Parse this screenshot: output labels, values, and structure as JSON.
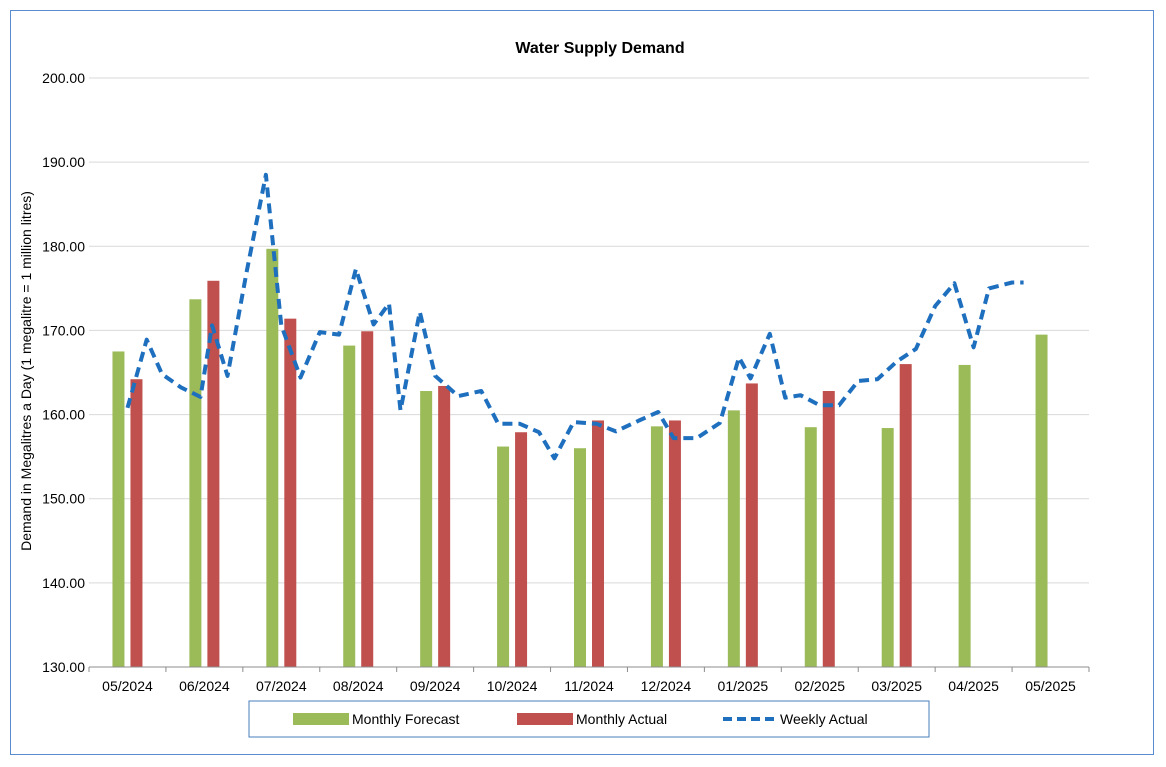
{
  "chart_data": {
    "type": "bar",
    "title": "Water Supply Demand",
    "ylabel": "Demand in Megalitres a Day (1 megalitre = 1 million litres)",
    "xlabel": "",
    "ylim": [
      130,
      200
    ],
    "ytick_step": 10,
    "ytick_labels": [
      "130.00",
      "140.00",
      "150.00",
      "160.00",
      "170.00",
      "180.00",
      "190.00",
      "200.00"
    ],
    "grid": true,
    "legend_position": "bottom",
    "categories": [
      "05/2024",
      "06/2024",
      "07/2024",
      "08/2024",
      "09/2024",
      "10/2024",
      "11/2024",
      "12/2024",
      "01/2025",
      "02/2025",
      "03/2025",
      "04/2025",
      "05/2025"
    ],
    "series": [
      {
        "name": "Monthly Forecast",
        "type": "bar",
        "color": "#9bbb59",
        "values": [
          167.5,
          173.7,
          179.7,
          168.2,
          162.8,
          156.2,
          156.0,
          158.6,
          160.5,
          158.5,
          158.4,
          165.9,
          169.5
        ]
      },
      {
        "name": "Monthly Actual",
        "type": "bar",
        "color": "#c0504d",
        "values": [
          164.2,
          175.9,
          171.4,
          169.9,
          163.4,
          157.9,
          159.3,
          159.3,
          163.7,
          162.8,
          166.0,
          null,
          null
        ]
      },
      {
        "name": "Weekly Actual",
        "type": "line",
        "style": "dashed",
        "color": "#1f6fbf",
        "x": [
          0.0,
          0.25,
          0.45,
          0.7,
          0.95,
          1.1,
          1.3,
          1.55,
          1.8,
          2.0,
          2.25,
          2.5,
          2.75,
          2.97,
          3.2,
          3.4,
          3.55,
          3.8,
          4.0,
          4.3,
          4.6,
          4.82,
          5.1,
          5.35,
          5.55,
          5.8,
          6.1,
          6.35,
          6.65,
          6.9,
          7.1,
          7.4,
          7.7,
          7.95,
          8.1,
          8.35,
          8.55,
          8.75,
          9.0,
          9.25,
          9.5,
          9.75,
          10.0,
          10.25,
          10.5,
          10.75,
          11.0,
          11.2,
          11.5,
          11.65
        ],
        "values": [
          160.8,
          168.9,
          164.8,
          163.2,
          162.1,
          170.6,
          164.6,
          177.0,
          188.5,
          170.6,
          164.4,
          169.8,
          169.5,
          177.3,
          170.7,
          173.2,
          160.5,
          172.2,
          164.6,
          162.2,
          162.8,
          158.9,
          158.9,
          157.9,
          154.8,
          159.1,
          158.9,
          158.0,
          159.3,
          160.3,
          157.2,
          157.2,
          159.0,
          166.8,
          164.3,
          169.6,
          162.0,
          162.3,
          161.1,
          161.1,
          164.0,
          164.2,
          166.3,
          167.8,
          172.9,
          175.6,
          168.0,
          175.0,
          175.7,
          175.7
        ]
      }
    ]
  }
}
